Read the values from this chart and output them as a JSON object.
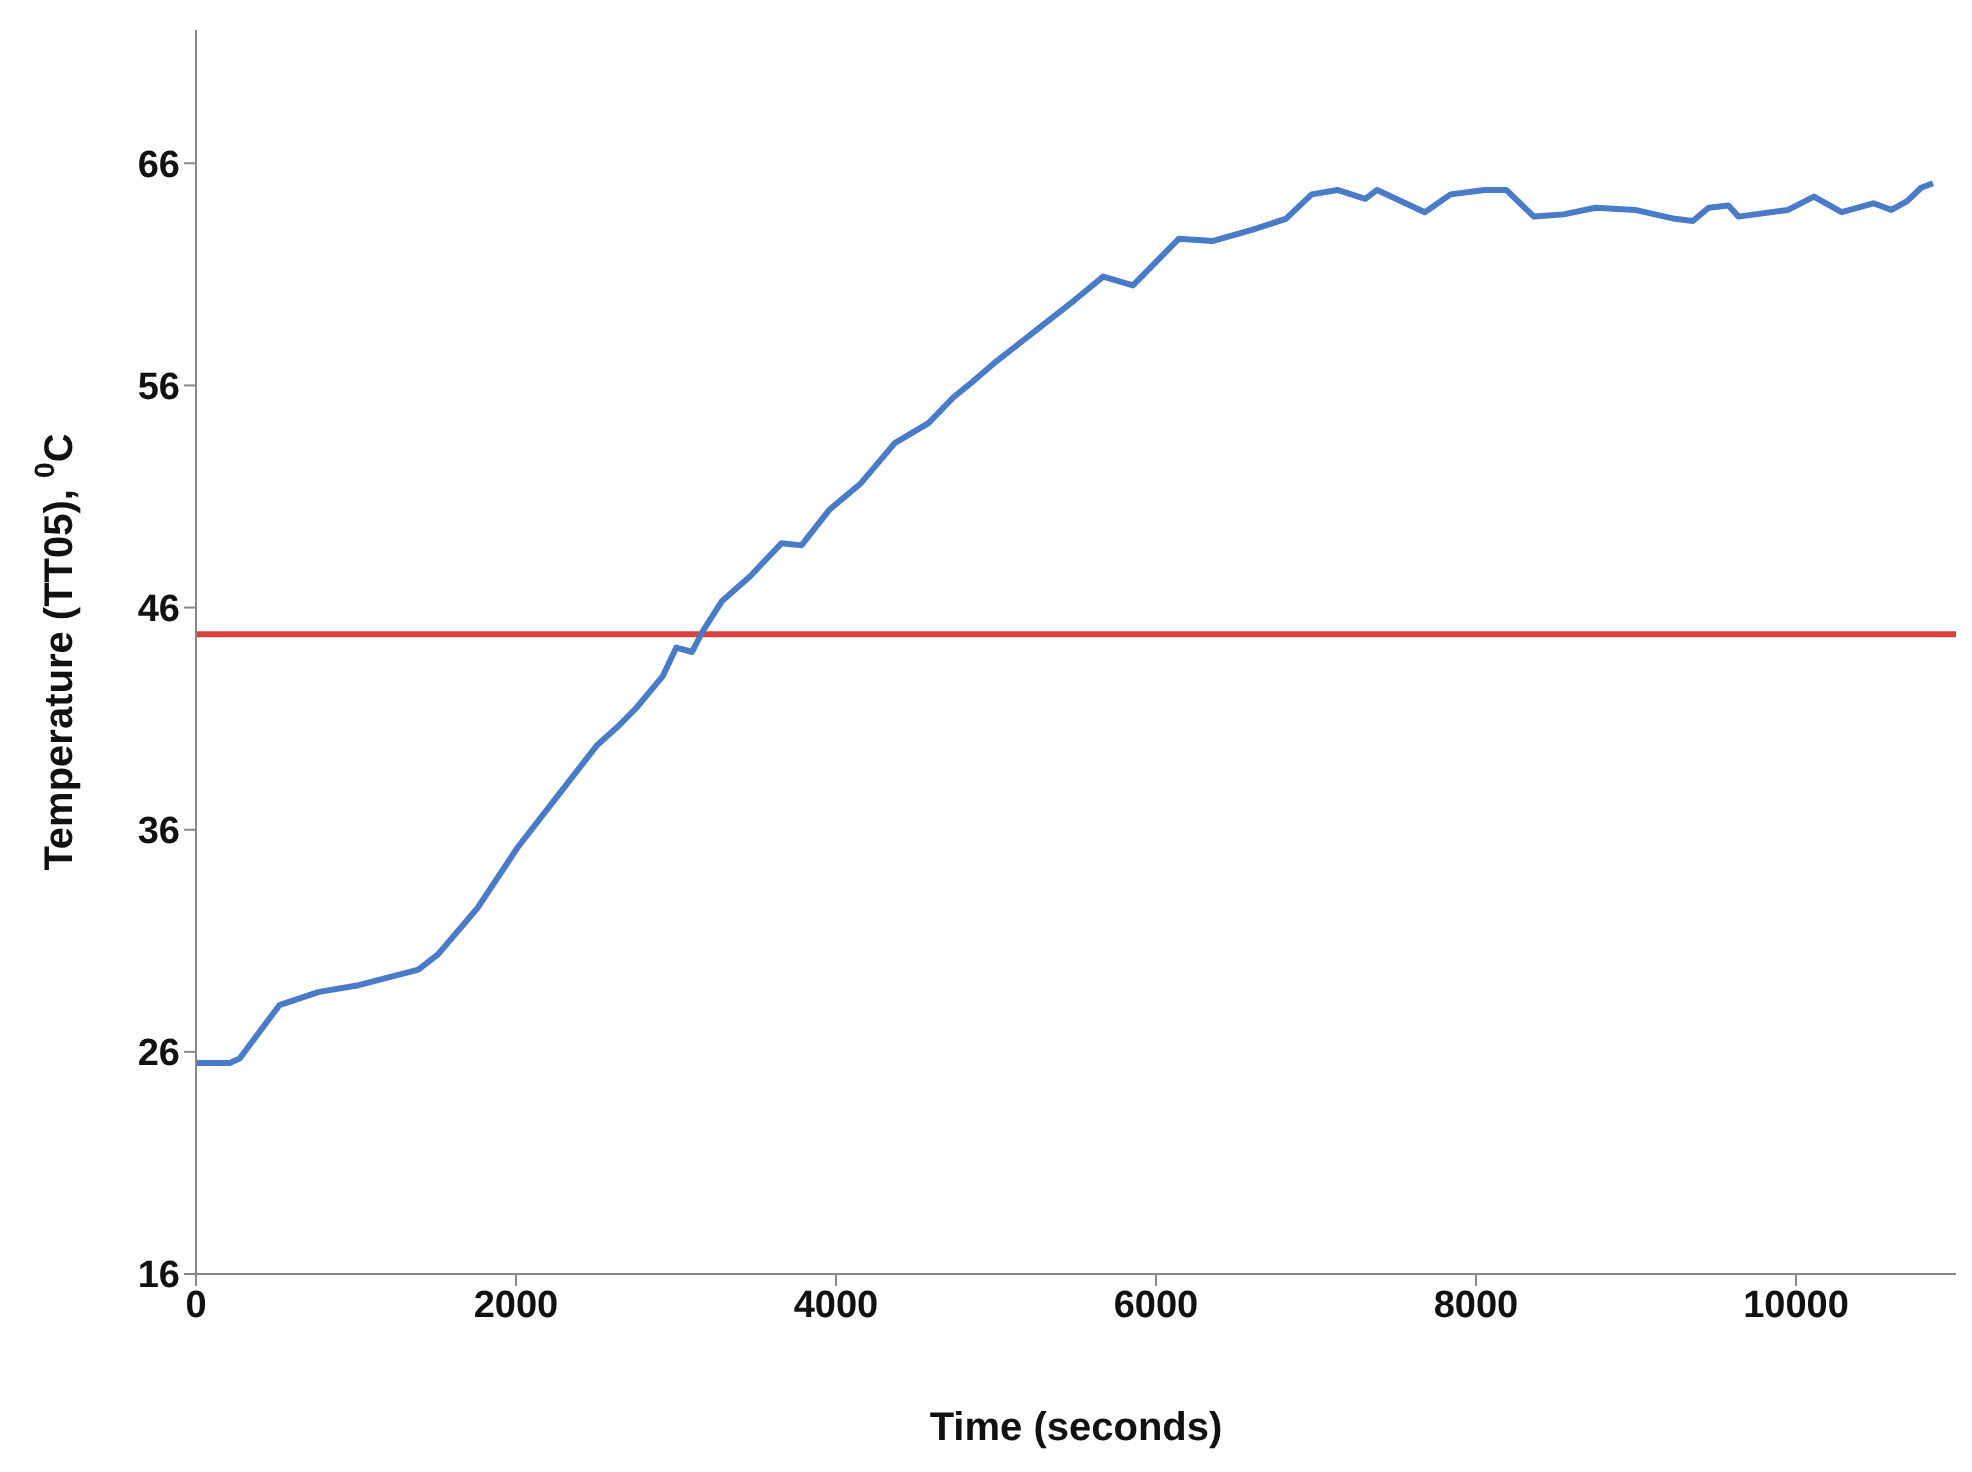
{
  "chart_data": {
    "type": "line",
    "xlabel": "Time (seconds)",
    "ylabel": "Temperature (TT05), $^{0}$C",
    "xlim": [
      0,
      11000
    ],
    "xticks": [
      0,
      2000,
      4000,
      6000,
      8000,
      10000
    ],
    "ylim": [
      16,
      72
    ],
    "yticks": [
      16,
      26,
      36,
      46,
      56,
      66
    ],
    "grid": false,
    "legend": false,
    "marker": "none",
    "line_style": "solid",
    "ref_lines": [
      {
        "axis": "y",
        "value": 44.8,
        "color": "#d9413a"
      }
    ],
    "series": [
      {
        "color": "#4a7bc8",
        "x": [
          0,
          211,
          273,
          521,
          769,
          1017,
          1390,
          1514,
          1762,
          2010,
          2258,
          2506,
          2630,
          2754,
          2916,
          3002,
          3100,
          3164,
          3288,
          3462,
          3660,
          3784,
          3958,
          4156,
          4367,
          4578,
          4739,
          4826,
          4988,
          5236,
          5484,
          5670,
          5856,
          6142,
          6352,
          6600,
          6811,
          6973,
          7134,
          7308,
          7382,
          7680,
          7841,
          8052,
          8189,
          8362,
          8548,
          8747,
          8995,
          9243,
          9355,
          9454,
          9578,
          9640,
          9950,
          10112,
          10285,
          10484,
          10596,
          10695,
          10782,
          10856
        ],
        "values": [
          25.5,
          25.5,
          25.7,
          28.1,
          28.7,
          29.0,
          29.7,
          30.4,
          32.5,
          35.2,
          37.5,
          39.8,
          40.6,
          41.5,
          42.9,
          44.2,
          44.0,
          44.9,
          46.3,
          47.4,
          48.9,
          48.8,
          50.4,
          51.6,
          53.4,
          54.3,
          55.5,
          56.0,
          57.0,
          58.4,
          59.8,
          60.9,
          60.5,
          62.6,
          62.5,
          63.0,
          63.5,
          64.6,
          64.8,
          64.4,
          64.8,
          63.8,
          64.6,
          64.8,
          64.8,
          63.6,
          63.7,
          64.0,
          63.9,
          63.5,
          63.4,
          64.0,
          64.1,
          63.6,
          63.9,
          64.5,
          63.8,
          64.2,
          63.9,
          64.3,
          64.9,
          65.1
        ]
      }
    ]
  }
}
